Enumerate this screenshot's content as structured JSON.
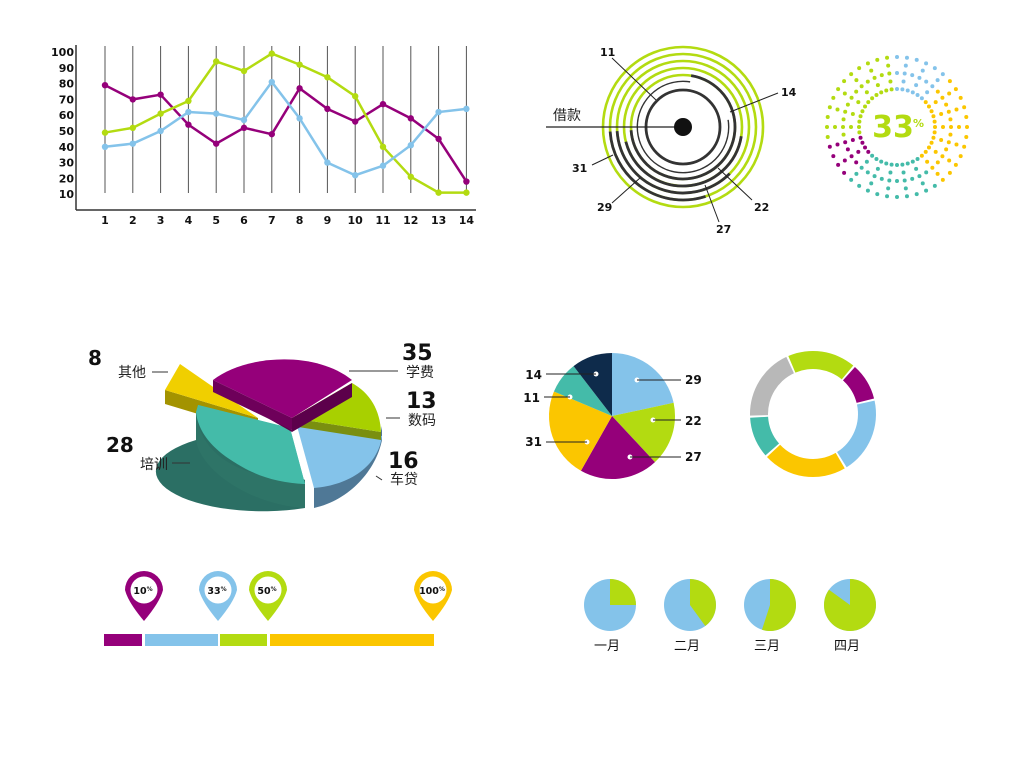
{
  "colors": {
    "purple": "#95007a",
    "blue": "#84c3ea",
    "green": "#b3db11",
    "yellow": "#fbc600",
    "teal": "#44bba9",
    "navy": "#0e2b4b",
    "gray": "#b8b8b8",
    "dark": "#333333"
  },
  "chart_data": [
    {
      "type": "line",
      "x": [
        1,
        2,
        3,
        4,
        5,
        6,
        7,
        8,
        9,
        10,
        11,
        12,
        13,
        14
      ],
      "ylim": [
        0,
        100
      ],
      "yticks": [
        10,
        20,
        30,
        40,
        50,
        60,
        70,
        80,
        90,
        100
      ],
      "grid": "vertical",
      "series": [
        {
          "color": "purple",
          "values": [
            79,
            70,
            73,
            54,
            42,
            52,
            48,
            77,
            64,
            56,
            67,
            58,
            45,
            18
          ]
        },
        {
          "color": "green",
          "values": [
            49,
            52,
            61,
            69,
            94,
            88,
            99,
            92,
            84,
            72,
            40,
            21,
            11,
            11
          ]
        },
        {
          "color": "blue",
          "values": [
            40,
            42,
            50,
            62,
            61,
            57,
            81,
            58,
            30,
            22,
            28,
            41,
            62,
            64
          ]
        }
      ]
    },
    {
      "type": "concentric-rings",
      "center_label": "借款",
      "values": [
        11,
        14,
        22,
        27,
        29,
        31
      ]
    },
    {
      "type": "dot-gauge",
      "value": "33",
      "unit": "%"
    },
    {
      "type": "pie3d",
      "slices": [
        {
          "label": "学费",
          "value": "35",
          "color": "purple"
        },
        {
          "label": "数码",
          "value": "13",
          "color": "green"
        },
        {
          "label": "车贷",
          "value": "16",
          "color": "blue"
        },
        {
          "label": "培训",
          "value": "28",
          "color": "teal"
        },
        {
          "label": "其他",
          "value": "8",
          "color": "yellow"
        }
      ]
    },
    {
      "type": "pie",
      "slices": [
        {
          "value": 29,
          "color": "blue"
        },
        {
          "value": 22,
          "color": "green"
        },
        {
          "value": 27,
          "color": "purple"
        },
        {
          "value": 31,
          "color": "yellow"
        },
        {
          "value": 11,
          "color": "teal"
        },
        {
          "value": 14,
          "color": "navy"
        }
      ]
    },
    {
      "type": "donut",
      "segments": [
        {
          "value": 18,
          "color": "green"
        },
        {
          "value": 10,
          "color": "purple"
        },
        {
          "value": 20,
          "color": "blue"
        },
        {
          "value": 22,
          "color": "yellow"
        },
        {
          "value": 11,
          "color": "teal"
        },
        {
          "value": 19,
          "color": "gray"
        }
      ]
    },
    {
      "type": "progress-markers",
      "markers": [
        {
          "value": "10",
          "unit": "%",
          "color": "purple"
        },
        {
          "value": "33",
          "unit": "%",
          "color": "blue"
        },
        {
          "value": "50",
          "unit": "%",
          "color": "green"
        },
        {
          "value": "100",
          "unit": "%",
          "color": "yellow"
        }
      ]
    },
    {
      "type": "mini-pies",
      "items": [
        {
          "label": "一月",
          "fraction": 0.25
        },
        {
          "label": "二月",
          "fraction": 0.4
        },
        {
          "label": "三月",
          "fraction": 0.55
        },
        {
          "label": "四月",
          "fraction": 0.85
        }
      ]
    }
  ]
}
